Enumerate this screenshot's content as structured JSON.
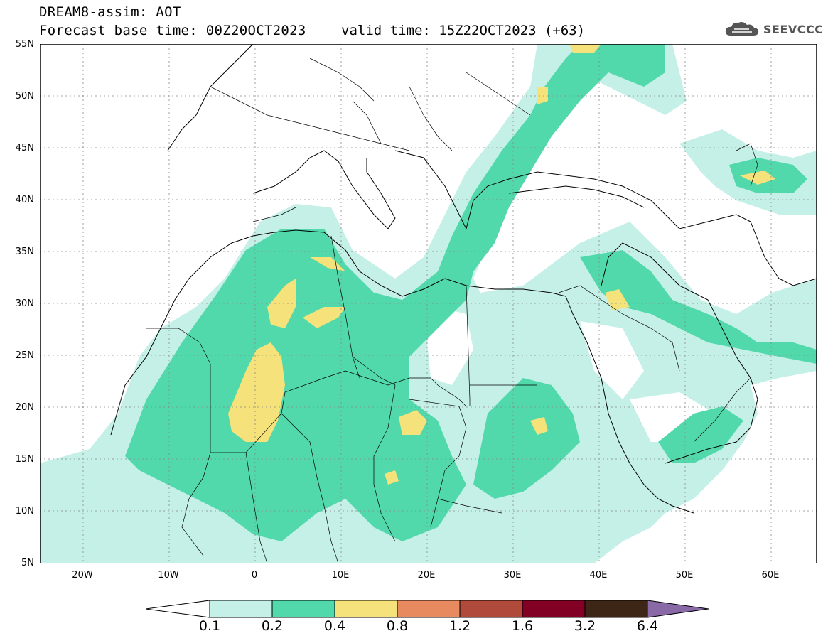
{
  "header": {
    "model_line": "DREAM8-assim: AOT",
    "base_time": "Forecast base time: 00Z20OCT2023",
    "valid_time": "valid time: 15Z22OCT2023 (+63)"
  },
  "logo": {
    "text": "SEEVCCC",
    "icon": "cloud-icon"
  },
  "map": {
    "lat_labels": [
      "55N",
      "50N",
      "45N",
      "40N",
      "35N",
      "30N",
      "25N",
      "20N",
      "15N",
      "10N",
      "5N"
    ],
    "lon_labels": [
      "20W",
      "10W",
      "0",
      "10E",
      "20E",
      "30E",
      "40E",
      "50E",
      "60E"
    ]
  },
  "colorbar": {
    "labels": [
      "0.1",
      "0.2",
      "0.4",
      "0.8",
      "1.2",
      "1.6",
      "3.2",
      "6.4"
    ],
    "colors": [
      "#ffffff",
      "#c5f0e8",
      "#52d9ab",
      "#f5e27a",
      "#e88a60",
      "#b04a3a",
      "#820024",
      "#3d2615",
      "#8a6aa6"
    ]
  }
}
